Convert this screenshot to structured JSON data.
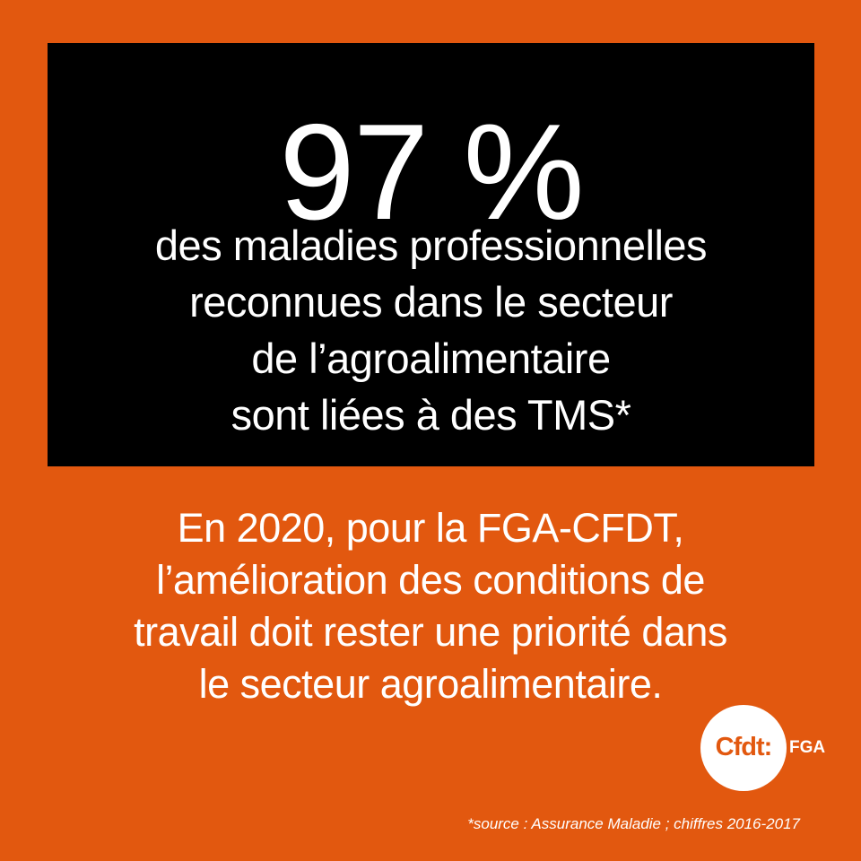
{
  "colors": {
    "background": "#e2580f",
    "box": "#000000",
    "text": "#ffffff"
  },
  "headline": {
    "stat": "97 %",
    "lines": [
      "des maladies professionnelles",
      "reconnues dans le secteur",
      "de l’agroalimentaire",
      "sont liées à des TMS*"
    ]
  },
  "message": {
    "lines": [
      "En 2020, pour la FGA-CFDT,",
      "l’amélioration des conditions de",
      "travail doit rester une priorité dans",
      "le secteur agroalimentaire."
    ]
  },
  "logo": {
    "text": "Cfdt:",
    "suffix": "FGA"
  },
  "footnote": "*source : Assurance Maladie ; chiffres 2016-2017"
}
